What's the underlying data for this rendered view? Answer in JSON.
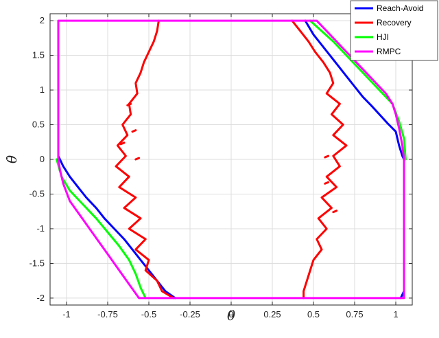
{
  "chart_data": {
    "type": "line",
    "xlabel": "θ",
    "ylabel": "θ̇",
    "xlim": [
      -1.1,
      1.1
    ],
    "ylim": [
      -2.1,
      2.1
    ],
    "xticks": [
      -1,
      -0.75,
      -0.5,
      -0.25,
      0,
      0.25,
      0.5,
      0.75,
      1
    ],
    "xtick_labels": [
      "-1",
      "-0.75",
      "-0.5",
      "-0.25",
      "0",
      "0.25",
      "0.5",
      "0.75",
      "1"
    ],
    "yticks": [
      -2,
      -1.5,
      -1,
      -0.5,
      0,
      0.5,
      1,
      1.5,
      2
    ],
    "ytick_labels": [
      "-2",
      "-1.5",
      "-1",
      "-0.5",
      "0",
      "0.5",
      "1",
      "1.5",
      "2"
    ],
    "grid": true,
    "legend_position": "top-right",
    "series": [
      {
        "name": "Reach-Avoid",
        "color": "#0000ff",
        "segments": [
          [
            [
              0.45,
              2.0
            ],
            [
              0.5,
              1.8
            ],
            [
              0.55,
              1.65
            ],
            [
              0.6,
              1.5
            ],
            [
              0.65,
              1.35
            ],
            [
              0.7,
              1.2
            ],
            [
              0.75,
              1.05
            ],
            [
              0.8,
              0.9
            ],
            [
              0.85,
              0.78
            ],
            [
              0.9,
              0.65
            ],
            [
              0.95,
              0.52
            ],
            [
              1.0,
              0.4
            ],
            [
              1.02,
              0.2
            ],
            [
              1.04,
              0.05
            ],
            [
              1.05,
              0.0
            ]
          ],
          [
            [
              1.05,
              -1.9
            ],
            [
              1.03,
              -2.0
            ]
          ],
          [
            [
              -1.05,
              0.05
            ],
            [
              -1.02,
              -0.1
            ],
            [
              -0.98,
              -0.25
            ],
            [
              -0.93,
              -0.4
            ],
            [
              -0.88,
              -0.55
            ],
            [
              -0.82,
              -0.7
            ],
            [
              -0.77,
              -0.85
            ],
            [
              -0.71,
              -1.0
            ],
            [
              -0.65,
              -1.15
            ],
            [
              -0.6,
              -1.3
            ],
            [
              -0.55,
              -1.45
            ],
            [
              -0.5,
              -1.6
            ],
            [
              -0.45,
              -1.75
            ],
            [
              -0.4,
              -1.9
            ],
            [
              -0.34,
              -2.0
            ]
          ]
        ]
      },
      {
        "name": "Recovery",
        "color": "#ff0000",
        "segments": [
          [
            [
              -0.44,
              2.0
            ],
            [
              -0.45,
              1.85
            ],
            [
              -0.47,
              1.7
            ],
            [
              -0.5,
              1.55
            ],
            [
              -0.53,
              1.4
            ],
            [
              -0.55,
              1.25
            ],
            [
              -0.58,
              1.1
            ],
            [
              -0.57,
              0.95
            ],
            [
              -0.62,
              0.8
            ],
            [
              -0.61,
              0.65
            ],
            [
              -0.66,
              0.5
            ],
            [
              -0.63,
              0.35
            ],
            [
              -0.69,
              0.2
            ],
            [
              -0.64,
              0.05
            ],
            [
              -0.7,
              -0.1
            ],
            [
              -0.62,
              -0.25
            ],
            [
              -0.68,
              -0.4
            ],
            [
              -0.58,
              -0.55
            ],
            [
              -0.65,
              -0.7
            ],
            [
              -0.55,
              -0.85
            ],
            [
              -0.62,
              -1.0
            ],
            [
              -0.52,
              -1.15
            ],
            [
              -0.58,
              -1.3
            ],
            [
              -0.5,
              -1.45
            ],
            [
              -0.52,
              -1.6
            ],
            [
              -0.45,
              -1.75
            ],
            [
              -0.42,
              -1.9
            ],
            [
              -0.35,
              -2.0
            ]
          ],
          [
            [
              0.37,
              2.0
            ],
            [
              0.42,
              1.85
            ],
            [
              0.47,
              1.7
            ],
            [
              0.51,
              1.55
            ],
            [
              0.56,
              1.4
            ],
            [
              0.6,
              1.25
            ],
            [
              0.62,
              1.1
            ],
            [
              0.58,
              0.95
            ],
            [
              0.66,
              0.8
            ],
            [
              0.61,
              0.65
            ],
            [
              0.68,
              0.5
            ],
            [
              0.62,
              0.35
            ],
            [
              0.7,
              0.2
            ],
            [
              0.62,
              0.05
            ],
            [
              0.66,
              -0.1
            ],
            [
              0.58,
              -0.25
            ],
            [
              0.64,
              -0.4
            ],
            [
              0.55,
              -0.55
            ],
            [
              0.61,
              -0.7
            ],
            [
              0.53,
              -0.85
            ],
            [
              0.58,
              -1.0
            ],
            [
              0.52,
              -1.15
            ],
            [
              0.55,
              -1.3
            ],
            [
              0.5,
              -1.45
            ],
            [
              0.48,
              -1.6
            ],
            [
              0.46,
              -1.75
            ],
            [
              0.44,
              -1.9
            ],
            [
              0.44,
              -2.0
            ]
          ],
          [
            [
              -0.63,
              0.78
            ],
            [
              -0.61,
              0.8
            ]
          ],
          [
            [
              -0.6,
              0.4
            ],
            [
              -0.58,
              0.42
            ]
          ],
          [
            [
              -0.67,
              0.22
            ],
            [
              -0.65,
              0.24
            ]
          ],
          [
            [
              -0.58,
              0.0
            ],
            [
              -0.56,
              0.02
            ]
          ],
          [
            [
              0.57,
              0.03
            ],
            [
              0.59,
              0.05
            ]
          ],
          [
            [
              0.57,
              -0.35
            ],
            [
              0.59,
              -0.33
            ]
          ],
          [
            [
              0.62,
              -0.76
            ],
            [
              0.64,
              -0.74
            ]
          ]
        ]
      },
      {
        "name": "HJI",
        "color": "#00ff00",
        "segments": [
          [
            [
              0.48,
              2.0
            ],
            [
              0.55,
              1.85
            ],
            [
              0.62,
              1.7
            ],
            [
              0.68,
              1.55
            ],
            [
              0.74,
              1.4
            ],
            [
              0.8,
              1.25
            ],
            [
              0.86,
              1.1
            ],
            [
              0.92,
              0.95
            ],
            [
              0.98,
              0.8
            ],
            [
              1.02,
              0.55
            ],
            [
              1.05,
              0.3
            ],
            [
              1.06,
              0.0
            ]
          ],
          [
            [
              -1.06,
              0.0
            ],
            [
              -1.03,
              -0.25
            ],
            [
              -0.98,
              -0.45
            ],
            [
              -0.9,
              -0.65
            ],
            [
              -0.82,
              -0.85
            ],
            [
              -0.75,
              -1.05
            ],
            [
              -0.68,
              -1.25
            ],
            [
              -0.62,
              -1.45
            ],
            [
              -0.58,
              -1.65
            ],
            [
              -0.55,
              -1.85
            ],
            [
              -0.52,
              -2.0
            ]
          ]
        ]
      },
      {
        "name": "RMPC",
        "color": "#ff00ff",
        "segments": [
          [
            [
              -1.05,
              2.0
            ],
            [
              0.52,
              2.0
            ],
            [
              0.58,
              1.85
            ],
            [
              0.64,
              1.7
            ],
            [
              0.7,
              1.55
            ],
            [
              0.76,
              1.4
            ],
            [
              0.82,
              1.25
            ],
            [
              0.88,
              1.1
            ],
            [
              0.94,
              0.95
            ],
            [
              0.98,
              0.8
            ],
            [
              1.0,
              0.65
            ],
            [
              1.02,
              0.45
            ],
            [
              1.04,
              0.2
            ],
            [
              1.05,
              0.0
            ],
            [
              1.05,
              -2.0
            ],
            [
              -0.56,
              -2.0
            ],
            [
              -0.62,
              -1.8
            ],
            [
              -0.68,
              -1.6
            ],
            [
              -0.74,
              -1.4
            ],
            [
              -0.8,
              -1.2
            ],
            [
              -0.86,
              -1.0
            ],
            [
              -0.92,
              -0.8
            ],
            [
              -0.98,
              -0.6
            ],
            [
              -1.02,
              -0.35
            ],
            [
              -1.04,
              -0.15
            ],
            [
              -1.05,
              0.0
            ],
            [
              -1.05,
              2.0
            ]
          ]
        ]
      }
    ]
  }
}
